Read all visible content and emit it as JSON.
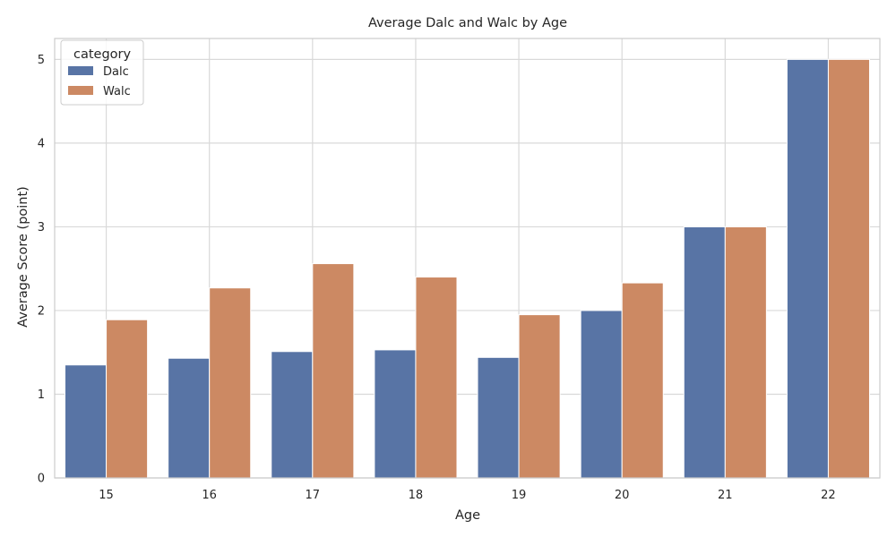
{
  "chart_data": {
    "type": "bar",
    "title": "Average Dalc and Walc by Age",
    "xlabel": "Age",
    "ylabel": "Average Score (point)",
    "categories": [
      "15",
      "16",
      "17",
      "18",
      "19",
      "20",
      "21",
      "22"
    ],
    "series": [
      {
        "name": "Dalc",
        "color": "#5874a5",
        "values": [
          1.35,
          1.43,
          1.51,
          1.53,
          1.44,
          2.0,
          3.0,
          5.0
        ]
      },
      {
        "name": "Walc",
        "color": "#cc8963",
        "values": [
          1.89,
          2.27,
          2.56,
          2.4,
          1.95,
          2.33,
          3.0,
          5.0
        ]
      }
    ],
    "ylim": [
      0,
      5.25
    ],
    "yticks": [
      "0",
      "1",
      "2",
      "3",
      "4",
      "5"
    ],
    "grid": true,
    "legend": {
      "title": "category",
      "position": "top-left"
    }
  }
}
